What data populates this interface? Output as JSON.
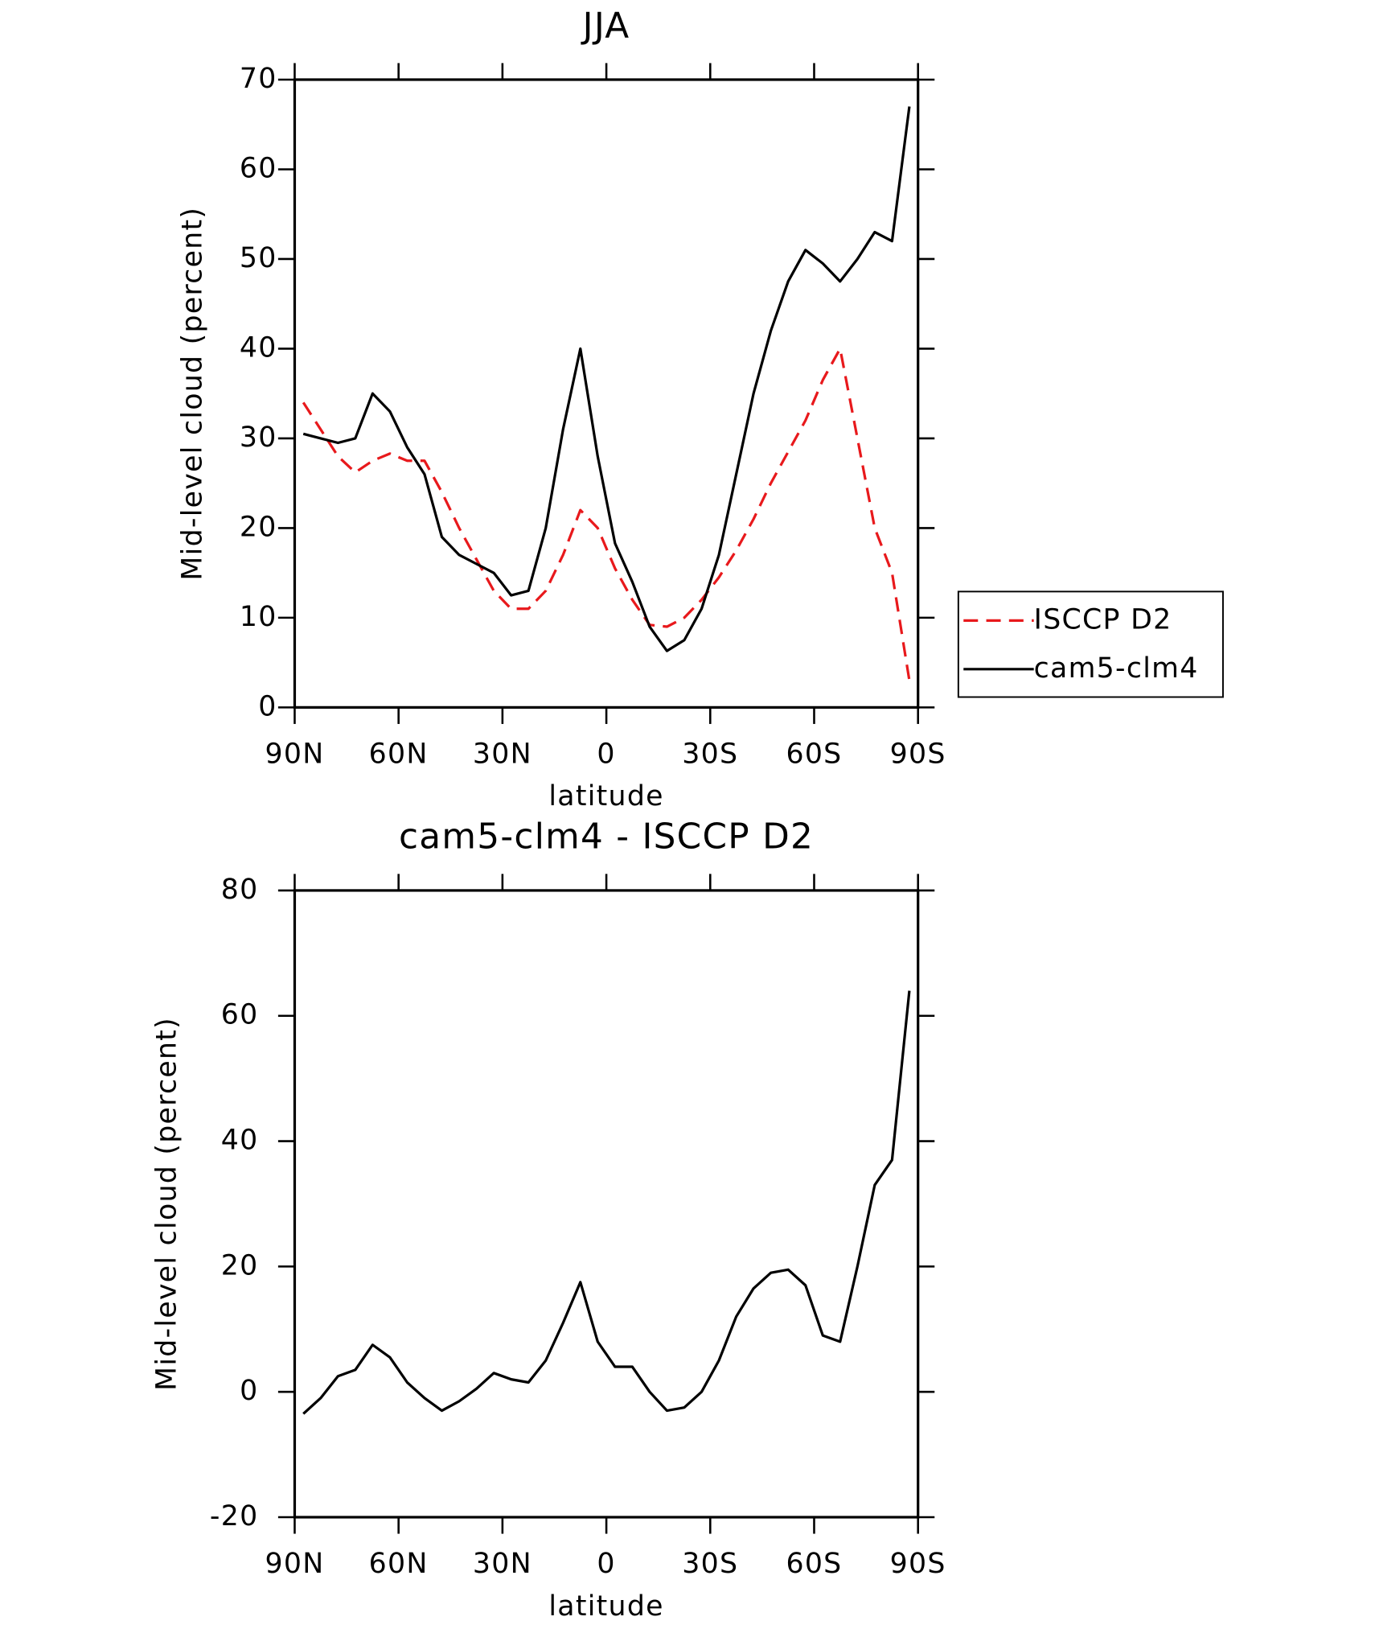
{
  "chart_data": [
    {
      "type": "line",
      "title": "JJA",
      "xlabel": "latitude",
      "ylabel": "Mid-level cloud (percent)",
      "x": [
        87.5,
        82.5,
        77.5,
        72.5,
        67.5,
        62.5,
        57.5,
        52.5,
        47.5,
        42.5,
        37.5,
        32.5,
        27.5,
        22.5,
        17.5,
        12.5,
        7.5,
        2.5,
        -2.5,
        -7.5,
        -12.5,
        -17.5,
        -22.5,
        -27.5,
        -32.5,
        -37.5,
        -42.5,
        -47.5,
        -52.5,
        -57.5,
        -62.5,
        -67.5,
        -72.5,
        -77.5,
        -82.5,
        -87.5
      ],
      "series": [
        {
          "name": "ISCCP D2",
          "color": "#e8191c",
          "dash": true,
          "values": [
            34,
            31,
            28,
            26.2,
            27.5,
            28.3,
            27.5,
            27.5,
            24,
            20,
            16.5,
            13,
            11,
            11,
            13,
            17,
            22,
            20,
            15.5,
            12,
            9.2,
            9,
            10,
            12,
            14.5,
            17.5,
            21,
            25,
            28.5,
            32,
            36.5,
            40,
            30,
            20,
            15,
            3
          ]
        },
        {
          "name": "cam5-clm4",
          "color": "#000000",
          "dash": false,
          "values": [
            30.5,
            30,
            29.5,
            30,
            35,
            33,
            29,
            26,
            19,
            17,
            16,
            15,
            12.5,
            13,
            20,
            31,
            40,
            28,
            18.3,
            14,
            9,
            6.3,
            7.5,
            11,
            17,
            26,
            35,
            42,
            47.5,
            51,
            49.5,
            47.5,
            50,
            53,
            52,
            67
          ]
        }
      ],
      "xlim": [
        90,
        -90
      ],
      "xticks": [
        {
          "value": 90,
          "label": "90N"
        },
        {
          "value": 60,
          "label": "60N"
        },
        {
          "value": 30,
          "label": "30N"
        },
        0,
        {
          "value": -30,
          "label": "30S"
        },
        {
          "value": -60,
          "label": "60S"
        },
        {
          "value": -90,
          "label": "90S"
        }
      ],
      "ylim": [
        0,
        70
      ],
      "yticks": [
        0,
        10,
        20,
        30,
        40,
        50,
        60,
        70
      ],
      "legend": "right"
    },
    {
      "type": "line",
      "title": "cam5-clm4 - ISCCP D2",
      "xlabel": "latitude",
      "ylabel": "Mid-level cloud (percent)",
      "x": [
        87.5,
        82.5,
        77.5,
        72.5,
        67.5,
        62.5,
        57.5,
        52.5,
        47.5,
        42.5,
        37.5,
        32.5,
        27.5,
        22.5,
        17.5,
        12.5,
        7.5,
        2.5,
        -2.5,
        -7.5,
        -12.5,
        -17.5,
        -22.5,
        -27.5,
        -32.5,
        -37.5,
        -42.5,
        -47.5,
        -52.5,
        -57.5,
        -62.5,
        -67.5,
        -72.5,
        -77.5,
        -82.5,
        -87.5
      ],
      "series": [
        {
          "color": "#000000",
          "dash": false,
          "values": [
            -3.5,
            -1,
            2.5,
            3.5,
            7.5,
            5.5,
            1.5,
            -1,
            -3,
            -1.5,
            0.5,
            3,
            2,
            1.5,
            5,
            11,
            17.5,
            8,
            4,
            4,
            0,
            -3,
            -2.5,
            0,
            5,
            12,
            16.5,
            19,
            19.5,
            17,
            9,
            8,
            20,
            33,
            37,
            64
          ]
        }
      ],
      "xlim": [
        90,
        -90
      ],
      "xticks": [
        {
          "value": 90,
          "label": "90N"
        },
        {
          "value": 60,
          "label": "60N"
        },
        {
          "value": 30,
          "label": "30N"
        },
        0,
        {
          "value": -30,
          "label": "30S"
        },
        {
          "value": -60,
          "label": "60S"
        },
        {
          "value": -90,
          "label": "90S"
        }
      ],
      "ylim": [
        -20,
        80
      ],
      "yticks": [
        -20,
        0,
        20,
        40,
        60,
        80
      ]
    }
  ]
}
